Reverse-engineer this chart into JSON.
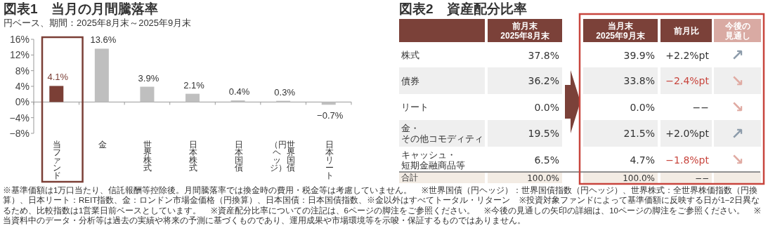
{
  "chart_data": [
    {
      "type": "bar",
      "title": "図表1　当月の月間騰落率",
      "subtitle": "円ベース、期間：2025年8月末～2025年9月末",
      "categories": [
        "当ファンド",
        "金",
        "世界株式",
        "日本株式",
        "日本国債",
        "世界国債（円ヘッジ）",
        "日本リート"
      ],
      "values": [
        4.1,
        13.6,
        3.9,
        2.1,
        0.4,
        0.3,
        -0.7
      ],
      "colors": [
        "#7b3f36",
        "#bfbfbf",
        "#bfbfbf",
        "#bfbfbf",
        "#bfbfbf",
        "#bfbfbf",
        "#bfbfbf"
      ],
      "value_labels": [
        "4.1%",
        "13.6%",
        "3.9%",
        "2.1%",
        "0.4%",
        "0.3%",
        "−0.7%"
      ],
      "ylim": [
        -8,
        16
      ],
      "yticks": [
        {
          "value": -8,
          "label": "−8%"
        },
        {
          "value": -4,
          "label": "−4%"
        },
        {
          "value": 0,
          "label": "0%"
        },
        {
          "value": 4,
          "label": "4%"
        },
        {
          "value": 8,
          "label": "8%"
        },
        {
          "value": 12,
          "label": "12%"
        },
        {
          "value": 16,
          "label": "16%"
        }
      ],
      "annotations": [
        "※基準価額は1万口当たり、信託報酬等控除後。月間騰落率では換金時の費用・税金等は考慮していません。",
        "※世界国債（円ヘッジ）：世界国債指数（円ヘッジ）、世界株式：全世界株価指数（円換算）、日本リート：REIT指数、金：ロンドン市場金価格（円換算）、日本国債：日本国債指数、※金以外はすべてトータル・リターン",
        "※投資対象ファンドによって基準価額に反映する日が1−2日異なるため、比較指数は1営業日前ベースとしています。",
        "※資産配分比率についての注記は、6ページの脚注をご参照ください。",
        "※今後の見通しの矢印の詳細は、10ページの脚注をご参照ください。",
        "※当資料中のデータ・分析等は過去の実績や将来の予測に基づくものであり、運用成果や市場環境等を示唆・保証するものではありません。"
      ]
    },
    {
      "type": "other",
      "title": "図表2　資産配分比率",
      "categories": [
        "前月末\n2025年8月末",
        "当月末\n2025年9月末",
        "前月比",
        "今後の見通し"
      ],
      "colors": [
        "#7b4139",
        "#7b4139",
        "#7b4139",
        "#d9aaa3"
      ],
      "y_categories": [
        "株式",
        "債券",
        "リート",
        "金・その他コモディティ",
        "キャッシュ・短期金融商品等",
        "合計"
      ],
      "cell_labels": [
        [
          "37.8%",
          "39.9%",
          "+2.2%pt",
          "↗"
        ],
        [
          "36.2%",
          "33.8%",
          "−2.4%pt",
          "↘"
        ],
        [
          "0.0%",
          "0.0%",
          "−−",
          "↘"
        ],
        [
          "19.5%",
          "21.5%",
          "+2.0%pt",
          "↗"
        ],
        [
          "6.5%",
          "4.7%",
          "−1.8%pt",
          "↘"
        ],
        [
          "100.0%",
          "100.0%",
          "−−",
          null
        ]
      ]
    }
  ]
}
